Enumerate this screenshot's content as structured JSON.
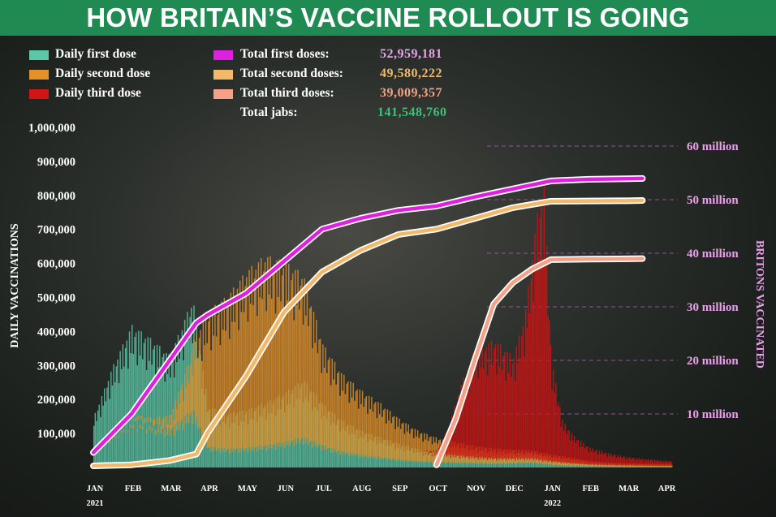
{
  "title": "HOW BRITAIN’S VACCINE ROLLOUT IS GOING",
  "legend": {
    "daily": [
      {
        "label": "Daily first dose",
        "color": "#5cc8a8"
      },
      {
        "label": "Daily second dose",
        "color": "#e3912a"
      },
      {
        "label": "Daily third dose",
        "color": "#d11414"
      }
    ],
    "totals": [
      {
        "label": "Total first doses:",
        "value": "52,959,181",
        "color": "#e020e0",
        "value_color": "#e6a3e6"
      },
      {
        "label": "Total second doses:",
        "value": "49,580,222",
        "color": "#f2b96a",
        "value_color": "#f2b96a"
      },
      {
        "label": "Total third doses:",
        "value": "39,009,357",
        "color": "#f4a188",
        "value_color": "#f4a188"
      },
      {
        "label": "Total jabs:",
        "value": "141,548,760",
        "color": "",
        "value_color": "#3fbf7a"
      }
    ]
  },
  "chart_data": {
    "type": "bar",
    "ylabel": "DAILY VACCINATIONS",
    "y2label": "BRITONS VACCINATED",
    "ylim": [
      0,
      1000000
    ],
    "y2lim": [
      0,
      65000000
    ],
    "yticks": [
      "100,000",
      "200,000",
      "300,000",
      "400,000",
      "500,000",
      "600,000",
      "700,000",
      "800,000",
      "900,000",
      "1,000,000"
    ],
    "yticks_values": [
      100000,
      200000,
      300000,
      400000,
      500000,
      600000,
      700000,
      800000,
      900000,
      1000000
    ],
    "y2ticks": [
      "10 million",
      "20 million",
      "30 million",
      "40 million",
      "50 million",
      "60 million"
    ],
    "y2ticks_values": [
      10000000,
      20000000,
      30000000,
      40000000,
      50000000,
      60000000
    ],
    "xticks": [
      {
        "label": "JAN",
        "month": 0
      },
      {
        "label": "FEB",
        "month": 1
      },
      {
        "label": "MAR",
        "month": 2
      },
      {
        "label": "APR",
        "month": 3
      },
      {
        "label": "MAY",
        "month": 4
      },
      {
        "label": "JUN",
        "month": 5
      },
      {
        "label": "JUL",
        "month": 6
      },
      {
        "label": "AUG",
        "month": 7
      },
      {
        "label": "SEP",
        "month": 8
      },
      {
        "label": "OCT",
        "month": 9
      },
      {
        "label": "NOV",
        "month": 10
      },
      {
        "label": "DEC",
        "month": 11
      },
      {
        "label": "JAN",
        "month": 12
      },
      {
        "label": "FEB",
        "month": 13
      },
      {
        "label": "MAR",
        "month": 14
      },
      {
        "label": "APR",
        "month": 15
      }
    ],
    "year_labels": [
      {
        "label": "2021",
        "month": 0
      },
      {
        "label": "2022",
        "month": 12
      }
    ],
    "daily_series": [
      {
        "name": "Daily first dose",
        "color": "#5cc8a8",
        "points": [
          [
            0,
            150000
          ],
          [
            0.5,
            300000
          ],
          [
            1,
            420000
          ],
          [
            1.5,
            380000
          ],
          [
            2,
            330000
          ],
          [
            2.6,
            500000
          ],
          [
            3,
            180000
          ],
          [
            3.5,
            160000
          ],
          [
            4,
            170000
          ],
          [
            4.5,
            190000
          ],
          [
            5,
            220000
          ],
          [
            5.5,
            260000
          ],
          [
            6,
            190000
          ],
          [
            6.5,
            140000
          ],
          [
            7,
            110000
          ],
          [
            7.5,
            90000
          ],
          [
            8,
            70000
          ],
          [
            8.5,
            55000
          ],
          [
            9,
            50000
          ],
          [
            9.5,
            45000
          ],
          [
            10,
            40000
          ],
          [
            10.5,
            35000
          ],
          [
            11,
            40000
          ],
          [
            11.5,
            45000
          ],
          [
            12,
            25000
          ],
          [
            12.5,
            15000
          ],
          [
            13,
            12000
          ],
          [
            13.5,
            10000
          ],
          [
            14,
            8000
          ],
          [
            14.5,
            7000
          ],
          [
            15,
            6000
          ]
        ]
      },
      {
        "name": "Daily second dose",
        "color": "#e3912a",
        "points": [
          [
            0,
            5000
          ],
          [
            0.5,
            8000
          ],
          [
            1,
            10000
          ],
          [
            1.5,
            15000
          ],
          [
            2,
            40000
          ],
          [
            2.5,
            150000
          ],
          [
            3,
            400000
          ],
          [
            3.5,
            450000
          ],
          [
            4,
            520000
          ],
          [
            4.5,
            560000
          ],
          [
            5,
            530000
          ],
          [
            5.5,
            480000
          ],
          [
            6,
            300000
          ],
          [
            6.5,
            230000
          ],
          [
            7,
            190000
          ],
          [
            7.5,
            160000
          ],
          [
            8,
            120000
          ],
          [
            8.5,
            90000
          ],
          [
            9,
            70000
          ],
          [
            9.5,
            60000
          ],
          [
            10,
            50000
          ],
          [
            10.5,
            45000
          ],
          [
            11,
            40000
          ],
          [
            11.5,
            35000
          ],
          [
            12,
            30000
          ],
          [
            12.5,
            25000
          ],
          [
            13,
            15000
          ],
          [
            13.5,
            12000
          ],
          [
            14,
            10000
          ],
          [
            14.5,
            9000
          ],
          [
            15,
            8000
          ]
        ]
      },
      {
        "name": "Daily third dose",
        "color": "#d11414",
        "points": [
          [
            0,
            0
          ],
          [
            8.5,
            0
          ],
          [
            9,
            10000
          ],
          [
            9.3,
            80000
          ],
          [
            9.6,
            200000
          ],
          [
            10,
            320000
          ],
          [
            10.5,
            350000
          ],
          [
            11,
            300000
          ],
          [
            11.3,
            420000
          ],
          [
            11.6,
            700000
          ],
          [
            11.8,
            830000
          ],
          [
            12,
            300000
          ],
          [
            12.3,
            120000
          ],
          [
            12.6,
            80000
          ],
          [
            13,
            50000
          ],
          [
            13.5,
            35000
          ],
          [
            14,
            25000
          ],
          [
            14.5,
            20000
          ],
          [
            15,
            15000
          ]
        ]
      }
    ],
    "cumulative_series": [
      {
        "name": "Total first doses",
        "color": "#e020e0",
        "points": [
          [
            0,
            2800000
          ],
          [
            1,
            10000000
          ],
          [
            2,
            20000000
          ],
          [
            2.7,
            27000000
          ],
          [
            3,
            28500000
          ],
          [
            4,
            32500000
          ],
          [
            5,
            38500000
          ],
          [
            6,
            44500000
          ],
          [
            7,
            46500000
          ],
          [
            8,
            48000000
          ],
          [
            9,
            48800000
          ],
          [
            10,
            50500000
          ],
          [
            11,
            52000000
          ],
          [
            12,
            53500000
          ],
          [
            13,
            53800000
          ],
          [
            14,
            53900000
          ],
          [
            14.4,
            53950000
          ]
        ]
      },
      {
        "name": "Total second doses",
        "color": "#f2b96a",
        "points": [
          [
            0,
            300000
          ],
          [
            1,
            500000
          ],
          [
            2,
            1300000
          ],
          [
            2.7,
            2500000
          ],
          [
            3,
            6500000
          ],
          [
            4,
            17000000
          ],
          [
            5,
            29000000
          ],
          [
            6,
            36500000
          ],
          [
            7,
            40500000
          ],
          [
            8,
            43500000
          ],
          [
            9,
            44500000
          ],
          [
            10,
            46500000
          ],
          [
            11,
            48500000
          ],
          [
            12,
            49700000
          ],
          [
            13,
            49750000
          ],
          [
            14,
            49800000
          ],
          [
            14.4,
            49850000
          ]
        ]
      },
      {
        "name": "Total third doses",
        "color": "#f4a188",
        "points": [
          [
            9,
            500000
          ],
          [
            9.5,
            9000000
          ],
          [
            10,
            20000000
          ],
          [
            10.5,
            30500000
          ],
          [
            11,
            34500000
          ],
          [
            11.5,
            37000000
          ],
          [
            12,
            38800000
          ],
          [
            13,
            38900000
          ],
          [
            14,
            38950000
          ],
          [
            14.4,
            39000000
          ]
        ]
      }
    ]
  }
}
